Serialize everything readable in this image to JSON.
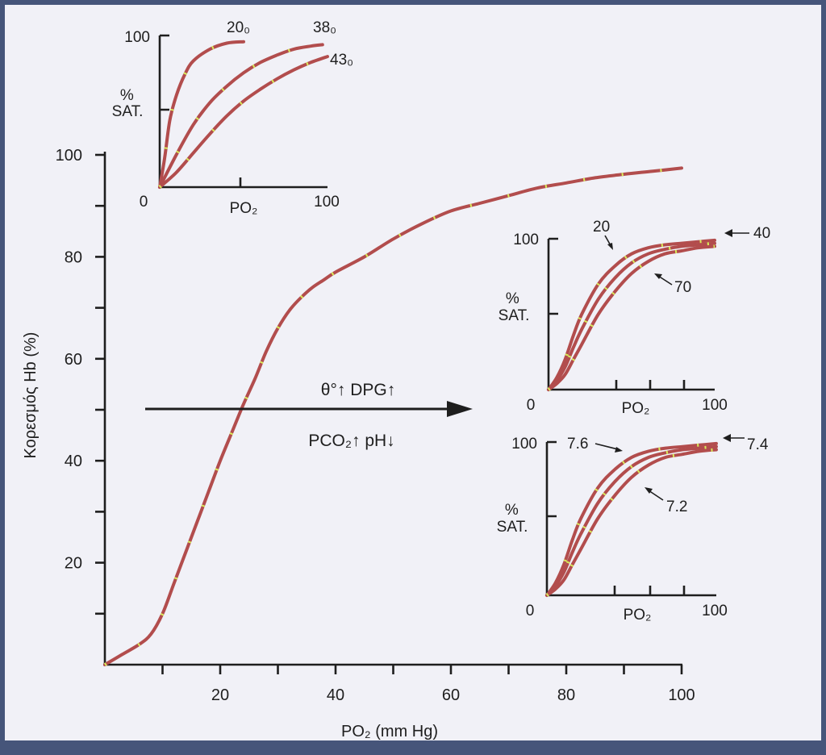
{
  "chart_data": [
    {
      "type": "line",
      "title": "",
      "xlabel": "PO₂ (mm Hg)",
      "ylabel": "Κορεσμός Hb (%)",
      "xlim": [
        0,
        100
      ],
      "ylim": [
        0,
        100
      ],
      "x_ticks": [
        20,
        40,
        60,
        80,
        100
      ],
      "y_ticks": [
        20,
        40,
        60,
        80,
        100
      ],
      "grid": false,
      "series": [
        {
          "x": [
            0,
            3,
            6,
            8,
            10,
            12,
            14,
            16,
            18,
            20,
            22,
            24,
            26,
            28,
            30,
            32,
            34,
            36,
            38,
            40,
            45,
            50,
            55,
            60,
            65,
            70,
            75,
            80,
            85,
            90,
            95,
            100
          ],
          "values": [
            0,
            2,
            4,
            6,
            10,
            16,
            22,
            28,
            34,
            40,
            45.5,
            51,
            56,
            61.5,
            66,
            69.5,
            72,
            74,
            75.5,
            77,
            80,
            83.5,
            86.5,
            89,
            90.5,
            92,
            93.5,
            94.5,
            95.5,
            96.2,
            96.8,
            97.4
          ]
        }
      ],
      "annotations": [
        {
          "text": "θ°↑ DPG↑"
        },
        {
          "text": "PCO₂↑ pH↓"
        }
      ]
    },
    {
      "type": "line",
      "title": "",
      "xlabel": "PO₂",
      "ylabel": "% SAT.",
      "xlim": [
        0,
        100
      ],
      "ylim": [
        0,
        100
      ],
      "tick_labels": {
        "x_left": "0",
        "x_right": "100",
        "y_top": "100"
      },
      "series": [
        {
          "name": "20₀",
          "x": [
            0,
            3,
            6,
            10,
            15,
            20,
            30,
            40,
            50
          ],
          "values": [
            0,
            20,
            45,
            62,
            76,
            85,
            93,
            97,
            98
          ]
        },
        {
          "name": "38₀",
          "x": [
            0,
            10,
            20,
            30,
            40,
            50,
            60,
            70,
            80,
            90,
            97
          ],
          "values": [
            0,
            22,
            42,
            57,
            68,
            77,
            84,
            89,
            93,
            95,
            96
          ]
        },
        {
          "name": "43₀",
          "x": [
            0,
            10,
            20,
            30,
            40,
            50,
            60,
            70,
            80,
            90,
            100
          ],
          "values": [
            0,
            10,
            23,
            36,
            48,
            58,
            66,
            73,
            79,
            84,
            88
          ]
        }
      ]
    },
    {
      "type": "line",
      "title": "",
      "xlabel": "PO₂",
      "ylabel": "% SAT.",
      "xlim": [
        0,
        100
      ],
      "ylim": [
        0,
        100
      ],
      "tick_labels": {
        "x_left": "0",
        "x_right": "100",
        "y_top": "100"
      },
      "series": [
        {
          "name": "20",
          "x": [
            0,
            5,
            10,
            15,
            20,
            30,
            40,
            50,
            60,
            70,
            80,
            90,
            100
          ],
          "values": [
            0,
            8,
            20,
            36,
            50,
            70,
            82,
            90,
            94,
            96,
            97,
            98,
            99
          ]
        },
        {
          "name": "40",
          "x": [
            0,
            5,
            10,
            15,
            20,
            30,
            40,
            50,
            60,
            70,
            80,
            90,
            100
          ],
          "values": [
            0,
            6,
            15,
            28,
            40,
            60,
            74,
            84,
            90,
            93,
            95,
            96,
            97
          ]
        },
        {
          "name": "70",
          "x": [
            0,
            5,
            10,
            15,
            20,
            30,
            40,
            50,
            60,
            70,
            80,
            90,
            100
          ],
          "values": [
            0,
            4,
            10,
            20,
            30,
            50,
            65,
            77,
            85,
            90,
            92,
            94,
            95
          ]
        }
      ]
    },
    {
      "type": "line",
      "title": "",
      "xlabel": "PO₂",
      "ylabel": "% SAT.",
      "xlim": [
        0,
        100
      ],
      "ylim": [
        0,
        100
      ],
      "tick_labels": {
        "x_left": "0",
        "x_right": "100",
        "y_top": "100"
      },
      "series": [
        {
          "name": "7.6",
          "x": [
            0,
            5,
            10,
            15,
            20,
            30,
            40,
            50,
            60,
            70,
            80,
            90,
            100
          ],
          "values": [
            0,
            8,
            20,
            36,
            50,
            70,
            82,
            90,
            94,
            96,
            97,
            98,
            99
          ]
        },
        {
          "name": "7.4",
          "x": [
            0,
            5,
            10,
            15,
            20,
            30,
            40,
            50,
            60,
            70,
            80,
            90,
            100
          ],
          "values": [
            0,
            6,
            15,
            28,
            40,
            60,
            74,
            84,
            90,
            93,
            95,
            96,
            97
          ]
        },
        {
          "name": "7.2",
          "x": [
            0,
            5,
            10,
            15,
            20,
            30,
            40,
            50,
            60,
            70,
            80,
            90,
            100
          ],
          "values": [
            0,
            4,
            10,
            20,
            30,
            50,
            65,
            77,
            85,
            90,
            92,
            94,
            95
          ]
        }
      ]
    }
  ],
  "colors": {
    "curve": "#b24d4d",
    "axis": "#1e1e1e",
    "paper": "#f1f1f7",
    "frame": "#46557a",
    "dots": "#d8ec5a"
  }
}
